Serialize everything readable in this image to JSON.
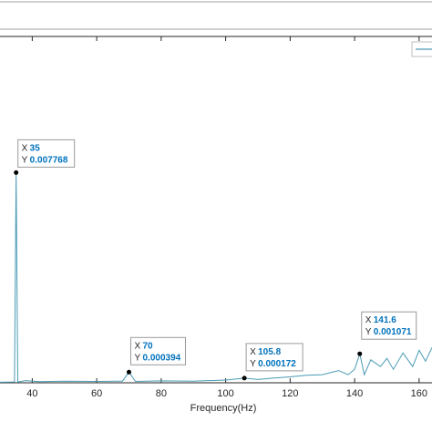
{
  "chart_data": {
    "type": "line",
    "xlabel": "Frequency(Hz)",
    "ylabel": "",
    "title": "",
    "xlim": [
      30,
      164
    ],
    "ylim": [
      0,
      0.0128
    ],
    "x_ticks": [
      40,
      60,
      80,
      100,
      120,
      140,
      160
    ],
    "grid": false,
    "legend": "top-right",
    "line_color": "#4a9bb5",
    "series": [
      {
        "x": [
          30,
          34.5,
          35,
          35.5,
          38,
          42,
          50,
          60,
          68,
          70,
          72,
          80,
          90,
          100,
          105.8,
          110,
          115,
          120,
          125,
          130,
          135,
          138,
          140,
          141.6,
          143,
          145,
          148,
          150,
          152,
          155,
          158,
          160,
          162,
          164
        ],
        "values": [
          2e-05,
          3e-05,
          0.007768,
          3e-05,
          8e-05,
          4e-05,
          6e-05,
          5e-05,
          6e-05,
          0.000394,
          5e-05,
          7e-05,
          6e-05,
          0.0001,
          0.000172,
          0.00012,
          0.00018,
          0.00022,
          0.00028,
          0.0003,
          0.00045,
          0.0003,
          0.0005,
          0.001071,
          0.0003,
          0.00085,
          0.0006,
          0.0009,
          0.0005,
          0.0011,
          0.0006,
          0.0012,
          0.0008,
          0.0013
        ]
      }
    ],
    "datatips": [
      {
        "x_label": "X",
        "x_value": "35",
        "y_label": "Y",
        "y_value": "0.007768",
        "x": 35,
        "y": 0.007768
      },
      {
        "x_label": "X",
        "x_value": "70",
        "y_label": "Y",
        "y_value": "0.000394",
        "x": 70,
        "y": 0.000394
      },
      {
        "x_label": "X",
        "x_value": "105.8",
        "y_label": "Y",
        "y_value": "0.000172",
        "x": 105.8,
        "y": 0.000172
      },
      {
        "x_label": "X",
        "x_value": "141.6",
        "y_label": "Y",
        "y_value": "0.001071",
        "x": 141.6,
        "y": 0.001071
      }
    ]
  }
}
